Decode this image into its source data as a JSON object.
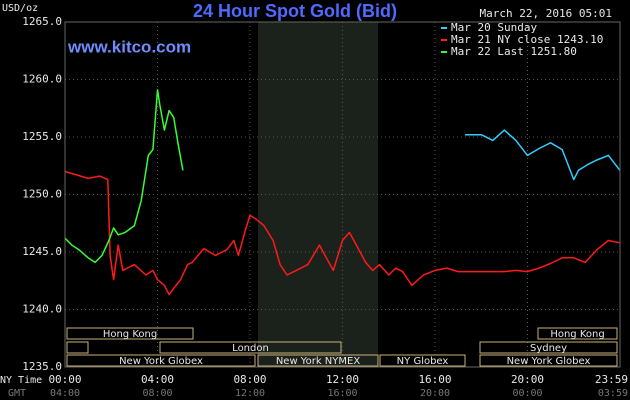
{
  "chart_data": {
    "type": "line",
    "title": "24 Hour Spot Gold (Bid)",
    "ylabel": "USD/oz",
    "timestamp": "March 22, 2016 05:01",
    "watermark": "www.kitco.com",
    "x_label_ny": "NY Time",
    "x_label_gmt": "GMT",
    "xlim": [
      0,
      24
    ],
    "xticks": [
      {
        "value": 0,
        "label": "00:00"
      },
      {
        "value": 4,
        "label": "04:00"
      },
      {
        "value": 8,
        "label": "08:00"
      },
      {
        "value": 12,
        "label": "12:00"
      },
      {
        "value": 16,
        "label": "16:00"
      },
      {
        "value": 20,
        "label": "20:00"
      },
      {
        "value": 23.98,
        "label": "23:59"
      }
    ],
    "xticks_gmt": [
      "04:00",
      "08:00",
      "12:00",
      "16:00",
      "20:00",
      "00:00",
      "03:59"
    ],
    "ylim": [
      1235,
      1265
    ],
    "yticks": [
      {
        "value": 1235,
        "label": "1235.0"
      },
      {
        "value": 1240,
        "label": "1240.0"
      },
      {
        "value": 1245,
        "label": "1245.0"
      },
      {
        "value": 1250,
        "label": "1250.0"
      },
      {
        "value": 1255,
        "label": "1255.0"
      },
      {
        "value": 1260,
        "label": "1260.0"
      },
      {
        "value": 1265,
        "label": "1265.0"
      }
    ],
    "grid": true,
    "legend": "top-right",
    "sessions": [
      "Hong Kong",
      "Hong Kong",
      "London",
      "Sydney",
      "New York Globex",
      "New York NYMEX",
      "NY Globex",
      "New York Globex"
    ],
    "series": [
      {
        "name": "Mar 20 Sunday",
        "color": "#33ccff",
        "x": [
          17.3,
          18.0,
          18.5,
          19.0,
          19.5,
          20.0,
          20.5,
          21.0,
          21.5,
          22.0,
          22.2,
          22.6,
          23.0,
          23.5,
          24.0
        ],
        "values": [
          1255.2,
          1255.2,
          1254.7,
          1255.6,
          1254.7,
          1253.4,
          1254.0,
          1254.5,
          1253.9,
          1251.3,
          1252.1,
          1252.6,
          1253.0,
          1253.4,
          1252.1
        ]
      },
      {
        "name": "Mar 21 NY close 1243.10",
        "color": "#ff1a1a",
        "x": [
          0,
          0.5,
          1.0,
          1.5,
          1.85,
          1.95,
          2.1,
          2.3,
          2.5,
          3.0,
          3.5,
          3.8,
          4.0,
          4.3,
          4.5,
          4.8,
          5.0,
          5.3,
          5.5,
          6.0,
          6.5,
          7.0,
          7.3,
          7.5,
          7.8,
          8.0,
          8.3,
          8.6,
          9.0,
          9.3,
          9.6,
          10.0,
          10.5,
          11.0,
          11.3,
          11.6,
          12.0,
          12.3,
          12.6,
          13.0,
          13.3,
          13.6,
          14.0,
          14.3,
          14.6,
          15.0,
          15.5,
          16.0,
          16.5,
          17.0,
          17.5,
          18.0,
          18.5,
          19.0,
          19.5,
          20.0,
          20.5,
          21.0,
          21.5,
          22.0,
          22.5,
          23.0,
          23.5,
          24.0
        ],
        "values": [
          1252.0,
          1251.7,
          1251.4,
          1251.6,
          1251.3,
          1244.7,
          1242.6,
          1245.6,
          1243.4,
          1243.9,
          1243.0,
          1243.4,
          1242.6,
          1242.1,
          1241.3,
          1242.1,
          1242.6,
          1243.9,
          1244.1,
          1245.3,
          1244.7,
          1245.2,
          1246.0,
          1244.7,
          1246.9,
          1248.2,
          1247.8,
          1247.3,
          1246.0,
          1243.9,
          1243.0,
          1243.4,
          1243.9,
          1245.6,
          1244.5,
          1243.4,
          1246.0,
          1246.7,
          1245.6,
          1244.1,
          1243.4,
          1243.9,
          1243.0,
          1243.6,
          1243.3,
          1242.1,
          1243.0,
          1243.4,
          1243.6,
          1243.3,
          1243.3,
          1243.3,
          1243.3,
          1243.3,
          1243.4,
          1243.3,
          1243.6,
          1244.0,
          1244.5,
          1244.5,
          1244.1,
          1245.2,
          1246.0,
          1245.8
        ]
      },
      {
        "name": "Mar 22 Last 1251.80",
        "color": "#33ff33",
        "x": [
          0,
          0.3,
          0.6,
          1.0,
          1.3,
          1.6,
          1.9,
          2.1,
          2.3,
          2.6,
          3.0,
          3.3,
          3.6,
          3.8,
          4.0,
          4.1,
          4.3,
          4.5,
          4.7,
          4.9,
          5.1
        ],
        "values": [
          1246.2,
          1245.6,
          1245.2,
          1244.5,
          1244.1,
          1244.7,
          1246.0,
          1247.1,
          1246.5,
          1246.7,
          1247.3,
          1249.5,
          1253.4,
          1253.9,
          1259.1,
          1257.8,
          1255.6,
          1257.3,
          1256.7,
          1254.3,
          1252.1
        ]
      }
    ]
  }
}
